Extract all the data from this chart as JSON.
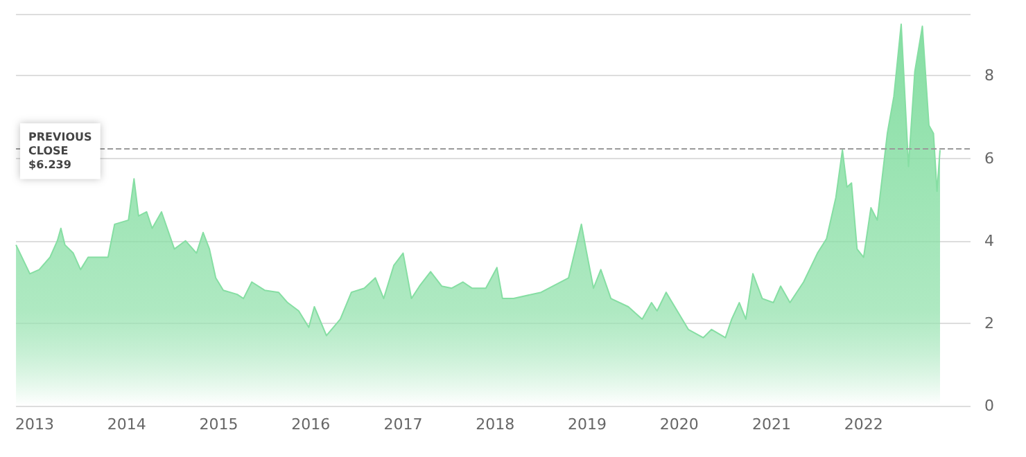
{
  "chart_data": {
    "type": "area",
    "x": [
      "2012-10-19",
      "2012-12-13",
      "2013-01-19",
      "2013-03-03",
      "2013-04-01",
      "2013-04-15",
      "2013-05-01",
      "2013-06-03",
      "2013-07-02",
      "2013-08-01",
      "2013-09-13",
      "2013-10-19",
      "2013-11-14",
      "2014-01-08",
      "2014-01-30",
      "2014-02-17",
      "2014-03-21",
      "2014-04-12",
      "2014-05-19",
      "2014-07-09",
      "2014-08-22",
      "2014-10-05",
      "2014-10-31",
      "2014-11-25",
      "2014-12-20",
      "2015-01-19",
      "2015-03-15",
      "2015-04-09",
      "2015-05-12",
      "2015-07-02",
      "2015-08-26",
      "2015-10-01",
      "2015-11-14",
      "2015-12-24",
      "2016-01-15",
      "2016-03-03",
      "2016-04-27",
      "2016-06-10",
      "2016-07-31",
      "2016-09-13",
      "2016-10-16",
      "2016-11-25",
      "2017-01-01",
      "2017-02-03",
      "2017-03-07",
      "2017-04-20",
      "2017-06-03",
      "2017-07-13",
      "2017-08-26",
      "2017-10-01",
      "2017-11-25",
      "2018-01-08",
      "2018-01-30",
      "2018-03-15",
      "2018-07-02",
      "2018-10-19",
      "2018-12-09",
      "2018-12-27",
      "2019-01-26",
      "2019-02-24",
      "2019-04-05",
      "2019-06-13",
      "2019-08-07",
      "2019-09-13",
      "2019-10-05",
      "2019-11-10",
      "2020-02-06",
      "2020-04-05",
      "2020-05-08",
      "2020-07-02",
      "2020-07-27",
      "2020-08-26",
      "2020-09-21",
      "2020-10-19",
      "2020-11-25",
      "2021-01-08",
      "2021-02-06",
      "2021-03-15",
      "2021-05-08",
      "2021-07-02",
      "2021-08-07",
      "2021-09-13",
      "2021-10-09",
      "2021-10-27",
      "2021-11-14",
      "2021-12-06",
      "2022-01-01",
      "2022-01-30",
      "2022-02-24",
      "2022-04-05",
      "2022-05-01",
      "2022-05-30",
      "2022-06-28",
      "2022-07-23",
      "2022-08-22",
      "2022-09-17",
      "2022-10-05",
      "2022-10-19",
      "2022-10-31"
    ],
    "series": [
      {
        "color": "#86dea3",
        "values": [
          3.9,
          3.2,
          3.3,
          3.6,
          4.0,
          4.3,
          3.9,
          3.7,
          3.3,
          3.6,
          3.6,
          3.6,
          4.4,
          4.5,
          5.5,
          4.6,
          4.7,
          4.3,
          4.7,
          3.8,
          4.0,
          3.7,
          4.2,
          3.8,
          3.1,
          2.8,
          2.7,
          2.6,
          3.0,
          2.8,
          2.75,
          2.5,
          2.3,
          1.9,
          2.4,
          1.7,
          2.1,
          2.75,
          2.85,
          3.1,
          2.6,
          3.4,
          3.7,
          2.6,
          2.9,
          3.25,
          2.9,
          2.85,
          3.0,
          2.85,
          2.85,
          3.35,
          2.6,
          2.6,
          2.75,
          3.1,
          4.4,
          3.8,
          2.85,
          3.3,
          2.6,
          2.4,
          2.1,
          2.5,
          2.3,
          2.75,
          1.85,
          1.65,
          1.85,
          1.65,
          2.1,
          2.5,
          2.1,
          3.2,
          2.6,
          2.5,
          2.9,
          2.5,
          3.0,
          3.7,
          4.05,
          5.05,
          6.2,
          5.3,
          5.4,
          3.8,
          3.6,
          4.8,
          4.5,
          6.6,
          7.5,
          9.25,
          5.8,
          8.1,
          9.2,
          6.8,
          6.6,
          5.2,
          6.2
        ]
      }
    ],
    "xlim": [
      "2012-10-19",
      "2023-03-01"
    ],
    "xticks": [
      "2013",
      "2014",
      "2015",
      "2016",
      "2017",
      "2018",
      "2019",
      "2020",
      "2021",
      "2022"
    ],
    "ylim": [
      0,
      9.5
    ],
    "yticks": [
      0,
      2,
      4,
      6,
      8
    ],
    "grid": "y",
    "ref_lines": [
      {
        "axis": "y",
        "value": 6.239,
        "label": "PREVIOUS\nCLOSE\n$6.239",
        "color": "#999999",
        "line_style": "dashed"
      }
    ]
  }
}
